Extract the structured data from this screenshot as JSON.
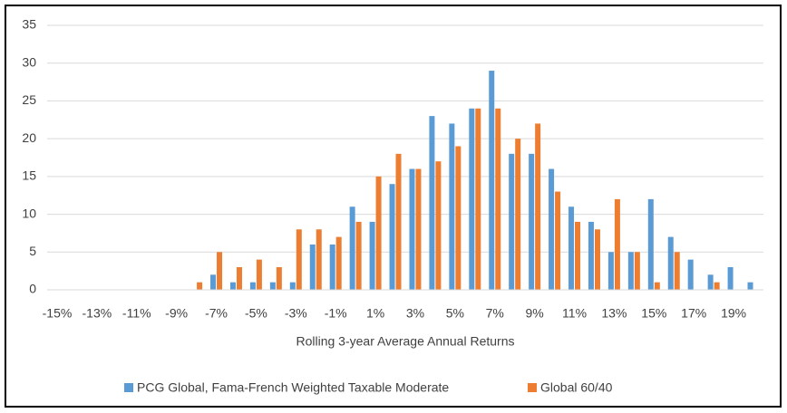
{
  "chart_data": {
    "type": "bar",
    "x_label": "Rolling 3-year Average Annual Returns",
    "categories": [
      "-15%",
      null,
      "-13%",
      null,
      "-11%",
      null,
      "-9%",
      null,
      "-7%",
      null,
      "-5%",
      null,
      "-3%",
      null,
      "-1%",
      null,
      "1%",
      null,
      "3%",
      null,
      "5%",
      null,
      "7%",
      null,
      "9%",
      null,
      "11%",
      null,
      "13%",
      null,
      "15%",
      null,
      "17%",
      null,
      "19%",
      null
    ],
    "series": [
      {
        "name": "PCG Global, Fama-French Weighted Taxable Moderate",
        "color": "#5b9bd5",
        "values": [
          0,
          0,
          0,
          0,
          0,
          0,
          0,
          0,
          2,
          1,
          1,
          1,
          1,
          6,
          6,
          11,
          9,
          14,
          16,
          23,
          22,
          24,
          29,
          18,
          18,
          16,
          11,
          9,
          5,
          5,
          12,
          7,
          4,
          2,
          3,
          1
        ]
      },
      {
        "name": "Global 60/40",
        "color": "#ed7d31",
        "values": [
          0,
          0,
          0,
          0,
          0,
          0,
          0,
          1,
          5,
          3,
          4,
          3,
          8,
          8,
          7,
          9,
          15,
          18,
          16,
          17,
          19,
          24,
          24,
          20,
          22,
          13,
          9,
          8,
          12,
          5,
          1,
          5,
          0,
          1,
          0,
          0
        ]
      }
    ],
    "ylim": [
      0,
      35
    ],
    "yticks": [
      0,
      5,
      10,
      15,
      20,
      25,
      30,
      35
    ],
    "grid": true,
    "legend": "bottom"
  }
}
